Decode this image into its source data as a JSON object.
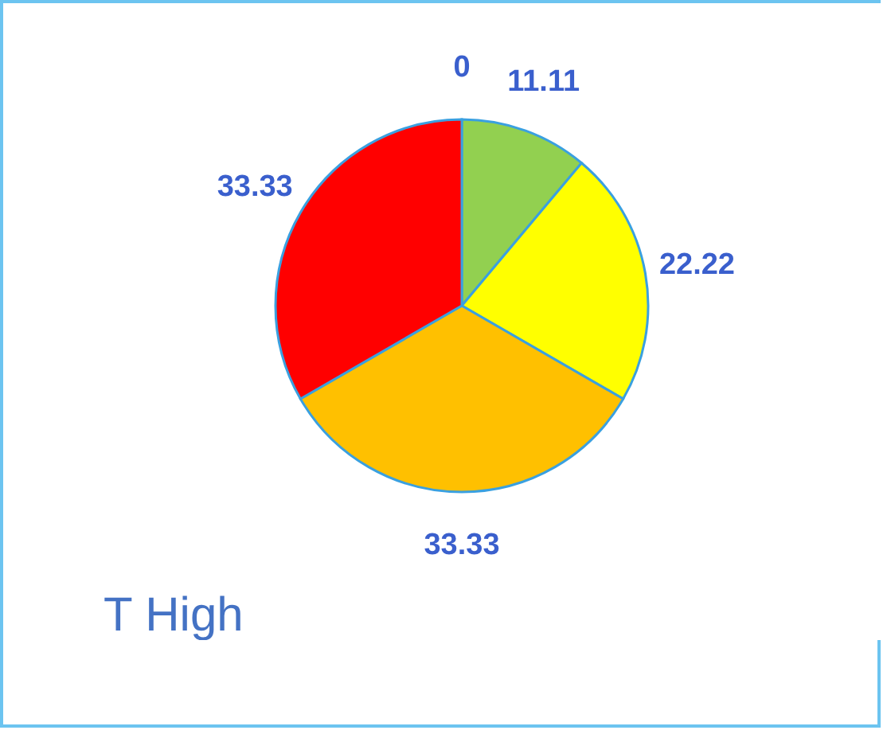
{
  "chart_data": {
    "type": "pie",
    "title": "T High",
    "categories": [
      null,
      null,
      null,
      null,
      null
    ],
    "values": [
      0,
      11.11,
      22.22,
      33.33,
      33.33
    ],
    "value_labels": [
      "0",
      "11.11",
      "22.22",
      "33.33",
      "33.33"
    ],
    "colors": [
      "#4472c4",
      "#92d050",
      "#ffff00",
      "#ffc000",
      "#ff0000"
    ],
    "legend": false
  }
}
